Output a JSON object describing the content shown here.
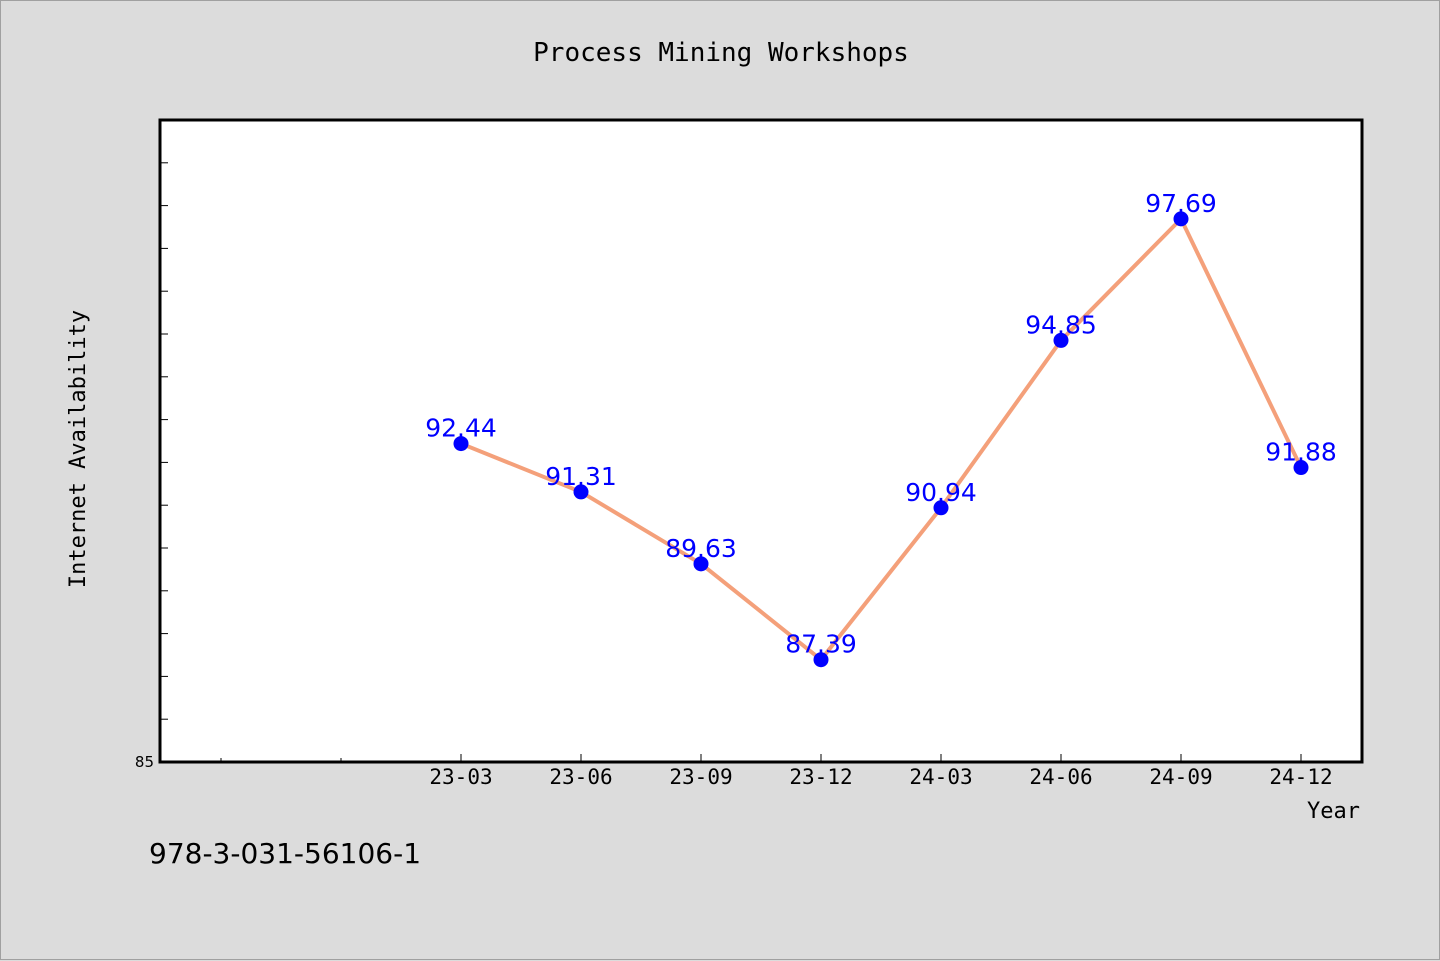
{
  "chart_data": {
    "type": "line",
    "title": "Process Mining Workshops",
    "xlabel": "Year",
    "ylabel": "Internet Availability",
    "categories": [
      "23-03",
      "23-06",
      "23-09",
      "23-12",
      "24-03",
      "24-06",
      "24-09",
      "24-12"
    ],
    "series": [
      {
        "values": [
          92.44,
          91.31,
          89.63,
          87.39,
          90.94,
          94.85,
          97.69,
          91.88
        ]
      }
    ],
    "y_tick_labels": [
      "85"
    ],
    "ylim": [
      85,
      100
    ],
    "grid": false,
    "line_color": "#f4a07a",
    "marker_color": "#0000ff",
    "label_color": "#0000ff"
  },
  "footer_text": "978-3-031-56106-1"
}
